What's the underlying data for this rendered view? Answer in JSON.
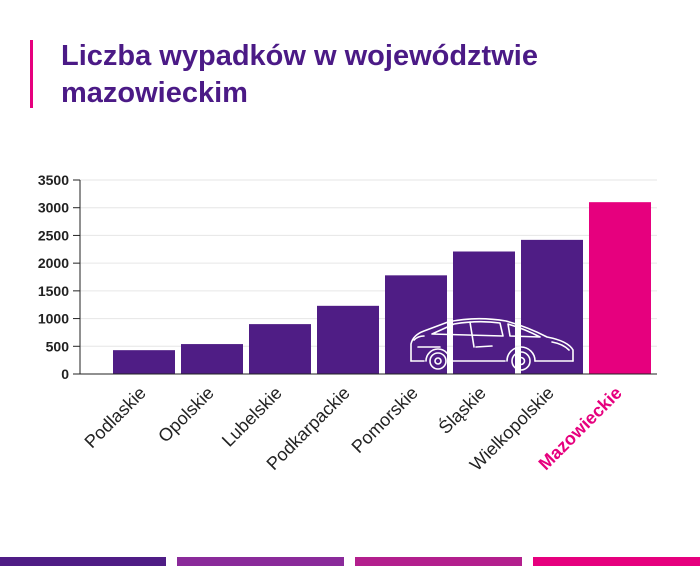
{
  "title": "Liczba wypadków w województwie mazowieckim",
  "colors": {
    "primary": "#4f1d85",
    "highlight": "#e6007e",
    "title": "#4b1a86",
    "accent": "#e6007e",
    "axis": "#222222",
    "grid": "#e6e6e6",
    "strips": [
      "#4f1d85",
      "#8a2a9a",
      "#b31f8d",
      "#e6007e"
    ]
  },
  "chart_data": {
    "type": "bar",
    "title": "Liczba wypadków w województwie mazowieckim",
    "xlabel": "",
    "ylabel": "",
    "categories": [
      "Podlaskie",
      "Opolskie",
      "Lubelskie",
      "Podkarpackie",
      "Pomorskie",
      "Śląskie",
      "Wielkopolskie",
      "Mazowieckie"
    ],
    "values": [
      430,
      540,
      900,
      1230,
      1780,
      2210,
      2420,
      3100
    ],
    "highlight_category": "Mazowieckie",
    "ylim": [
      0,
      3500
    ],
    "yticks": [
      0,
      500,
      1000,
      1500,
      2000,
      2500,
      3000,
      3500
    ],
    "grid": true,
    "legend": "none"
  }
}
